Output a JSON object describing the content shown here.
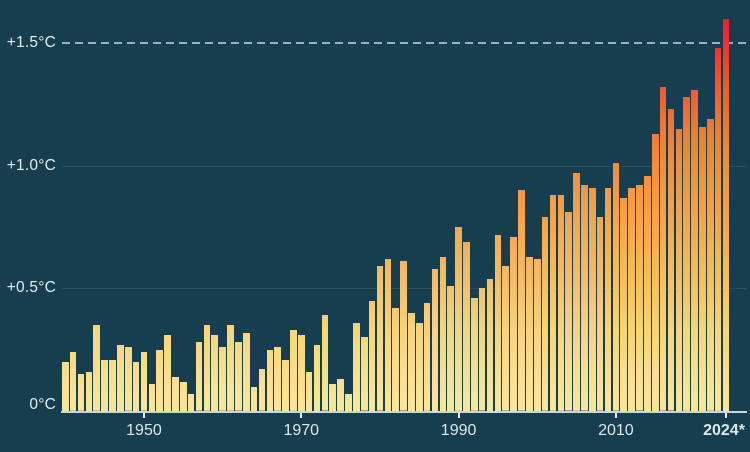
{
  "chart_data": {
    "type": "bar",
    "title": "",
    "xlabel": "",
    "ylabel": "",
    "ylim": [
      0,
      1.63
    ],
    "grid": "horizontal, faint at +0.5 and +1.0, dashed threshold at +1.5",
    "legend": "none",
    "years": [
      1940,
      1941,
      1942,
      1943,
      1944,
      1945,
      1946,
      1947,
      1948,
      1949,
      1950,
      1951,
      1952,
      1953,
      1954,
      1955,
      1956,
      1957,
      1958,
      1959,
      1960,
      1961,
      1962,
      1963,
      1964,
      1965,
      1966,
      1967,
      1968,
      1969,
      1970,
      1971,
      1972,
      1973,
      1974,
      1975,
      1976,
      1977,
      1978,
      1979,
      1980,
      1981,
      1982,
      1983,
      1984,
      1985,
      1986,
      1987,
      1988,
      1989,
      1990,
      1991,
      1992,
      1993,
      1994,
      1995,
      1996,
      1997,
      1998,
      1999,
      2000,
      2001,
      2002,
      2003,
      2004,
      2005,
      2006,
      2007,
      2008,
      2009,
      2010,
      2011,
      2012,
      2013,
      2014,
      2015,
      2016,
      2017,
      2018,
      2019,
      2020,
      2021,
      2022,
      2023,
      2024
    ],
    "values": [
      0.2,
      0.24,
      0.15,
      0.16,
      0.35,
      0.21,
      0.21,
      0.27,
      0.26,
      0.2,
      0.24,
      0.11,
      0.25,
      0.31,
      0.14,
      0.12,
      0.07,
      0.28,
      0.35,
      0.31,
      0.26,
      0.35,
      0.28,
      0.32,
      0.1,
      0.17,
      0.25,
      0.26,
      0.21,
      0.33,
      0.31,
      0.16,
      0.27,
      0.39,
      0.11,
      0.13,
      0.07,
      0.36,
      0.3,
      0.45,
      0.59,
      0.62,
      0.42,
      0.61,
      0.4,
      0.36,
      0.44,
      0.58,
      0.63,
      0.51,
      0.75,
      0.69,
      0.46,
      0.5,
      0.54,
      0.72,
      0.59,
      0.71,
      0.9,
      0.63,
      0.62,
      0.79,
      0.88,
      0.88,
      0.81,
      0.97,
      0.92,
      0.91,
      0.79,
      0.91,
      1.01,
      0.87,
      0.91,
      0.92,
      0.96,
      1.13,
      1.32,
      1.23,
      1.15,
      1.28,
      1.31,
      1.16,
      1.19,
      1.48,
      1.6
    ],
    "y_ticks": [
      {
        "label": "0°C",
        "value": 0
      },
      {
        "label": "+0.5°C",
        "value": 0.5
      },
      {
        "label": "+1.0°C",
        "value": 1.0
      },
      {
        "label": "+1.5°C",
        "value": 1.5
      }
    ],
    "x_ticks": [
      {
        "label": "1950",
        "year": 1950,
        "bold": false
      },
      {
        "label": "1970",
        "year": 1970,
        "bold": false
      },
      {
        "label": "1990",
        "year": 1990,
        "bold": false
      },
      {
        "label": "2010",
        "year": 2010,
        "bold": false
      },
      {
        "label": "2024*",
        "year": 2024,
        "bold": true
      }
    ],
    "threshold": {
      "value": 1.5,
      "style": "dashed"
    },
    "colors": {
      "background": "#163e4e",
      "text": "#e6edf0",
      "x_text": "#dfe8ec",
      "axis_line": "#ccd6da",
      "tick": "#e6edf0",
      "faint_gridline": "rgba(255,255,255,0.08)",
      "threshold_line": "#b6c5cc",
      "bar_gradient_bottom_to_top": [
        "#f9e79e",
        "#f8d57b",
        "#f5b357",
        "#f39a46",
        "#f07d38",
        "#ed5b2f",
        "#ea372b",
        "#e6232a"
      ]
    }
  }
}
